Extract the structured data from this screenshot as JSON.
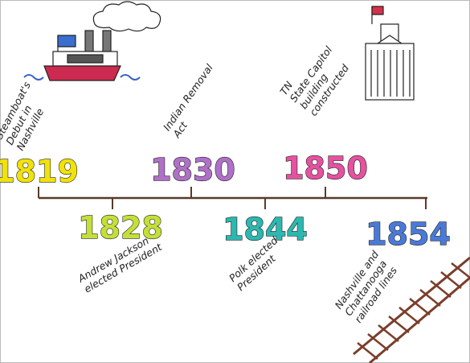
{
  "timeline": {
    "events": [
      {
        "year": "1819",
        "color": "#f0e20a",
        "lines": [
          "Steamboat's",
          "Debut in",
          "Nashville"
        ]
      },
      {
        "year": "1828",
        "color": "#c4e038",
        "lines": [
          "Andrew Jackson",
          "elected President"
        ]
      },
      {
        "year": "1830",
        "color": "#b070c8",
        "lines": [
          "Indian Removal",
          "Act"
        ]
      },
      {
        "year": "1844",
        "color": "#2cb8b0",
        "lines": [
          "Polk elected",
          "President"
        ]
      },
      {
        "year": "1850",
        "color": "#e452a0",
        "lines": [
          "TN",
          "State Capitol",
          "building",
          "constructed"
        ]
      },
      {
        "year": "1854",
        "color": "#4a7ad8",
        "lines": [
          "Nashville and",
          "Chattanooga",
          "railroad lines"
        ]
      }
    ]
  }
}
